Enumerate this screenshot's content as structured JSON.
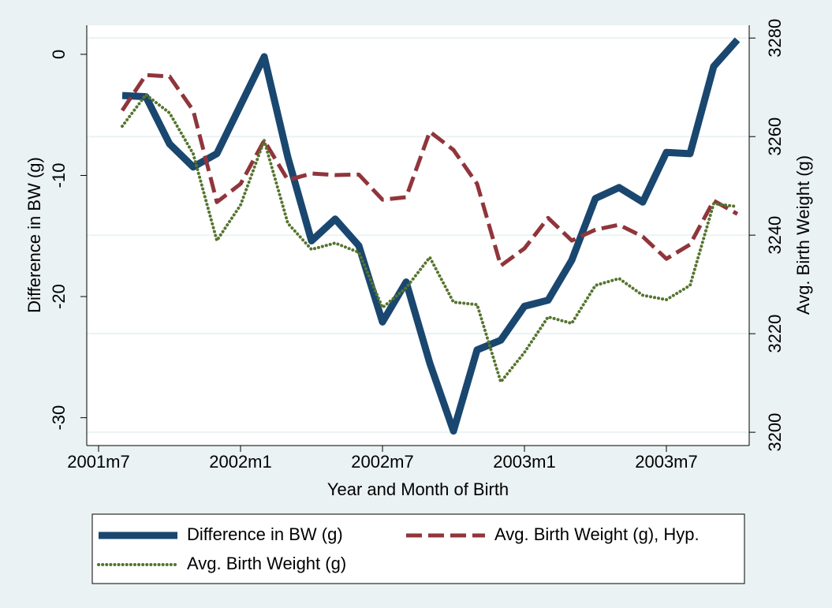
{
  "chart_data": {
    "type": "line",
    "x_label": "Year and Month of Birth",
    "y_label": "Difference in BW (g)",
    "y2_label": "Avg. Birth Weight (g)",
    "x": [
      499,
      500,
      501,
      502,
      503,
      504,
      505,
      506,
      507,
      508,
      509,
      510,
      511,
      512,
      513,
      514,
      515,
      516,
      517,
      518,
      519,
      520,
      521,
      522,
      523,
      524,
      525
    ],
    "xlim": [
      497.5,
      525.5
    ],
    "xticks": [
      {
        "value": 498,
        "label": "2001m7"
      },
      {
        "value": 504,
        "label": "2002m1"
      },
      {
        "value": 510,
        "label": "2002m7"
      },
      {
        "value": 516,
        "label": "2003m1"
      },
      {
        "value": 522,
        "label": "2003m7"
      }
    ],
    "ylim": [
      -32.3,
      2.4
    ],
    "yticks": [
      -30,
      -20,
      -10,
      0
    ],
    "y2lim": [
      3197.3,
      3282.6
    ],
    "y2ticks": [
      3200,
      3220,
      3240,
      3260,
      3280
    ],
    "grid": true,
    "legend": "bottom",
    "series": [
      {
        "name": "Difference in BW (g)",
        "color": "#1a476f",
        "style": "solid",
        "values": [
          -3.4,
          -3.5,
          -7.4,
          -9.3,
          -8.2,
          -4.2,
          -0.2,
          -8.5,
          -15.4,
          -13.6,
          -15.8,
          -22.1,
          -18.8,
          -25.5,
          -31.1,
          -24.4,
          -23.6,
          -20.8,
          -20.3,
          -17.0,
          -11.9,
          -11.0,
          -12.2,
          -8.1,
          -8.2,
          -1.0,
          1.2
        ]
      },
      {
        "name": "Avg. Birth Weight (g), Hyp.",
        "color": "#90353b",
        "style": "dashed",
        "axis": "y2",
        "values": [
          3265.3,
          3272.5,
          3272.2,
          3265.3,
          3246.7,
          3250.4,
          3259.2,
          3251.2,
          3252.5,
          3252.2,
          3252.3,
          3247.2,
          3247.7,
          3261.0,
          3257.3,
          3250.4,
          3233.8,
          3237.3,
          3243.5,
          3238.9,
          3241.1,
          3242.1,
          3239.7,
          3235.2,
          3238.1,
          3247.0,
          3244.3
        ]
      },
      {
        "name": "Avg. Birth Weight (g)",
        "color": "#55752f",
        "style": "dotted",
        "axis": "y2",
        "values": [
          3262.1,
          3268.5,
          3264.8,
          3256.5,
          3238.9,
          3246.1,
          3259.2,
          3242.4,
          3237.1,
          3238.4,
          3236.5,
          3225.3,
          3229.3,
          3235.5,
          3226.4,
          3225.9,
          3210.2,
          3216.2,
          3223.4,
          3222.1,
          3229.8,
          3231.2,
          3227.8,
          3226.9,
          3229.8,
          3246.4,
          3245.8
        ]
      }
    ]
  }
}
